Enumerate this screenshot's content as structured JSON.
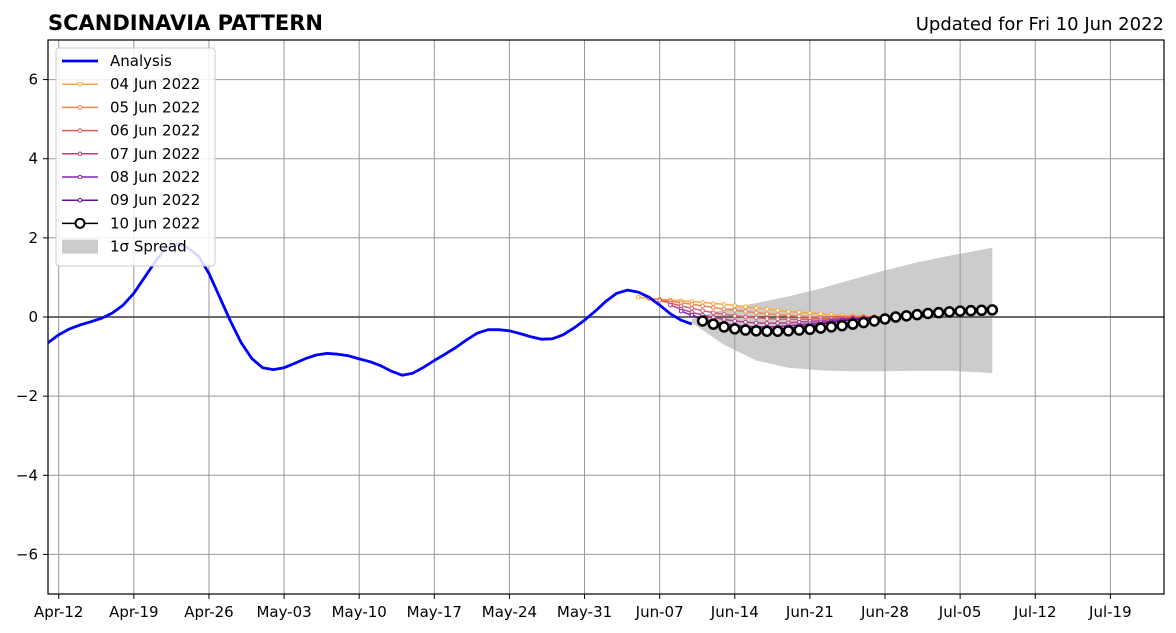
{
  "chart_data": {
    "type": "line",
    "title": "SCANDINAVIA PATTERN",
    "subtitle": "Updated for Fri 10 Jun 2022",
    "xlabel": "",
    "ylabel": "",
    "xlim": [
      "2022-04-11",
      "2022-07-24"
    ],
    "ylim": [
      -7,
      7
    ],
    "grid": true,
    "legend_position": "top-left",
    "x_ticks": [
      "2022-04-12",
      "2022-04-19",
      "2022-04-26",
      "2022-05-03",
      "2022-05-10",
      "2022-05-17",
      "2022-05-24",
      "2022-05-31",
      "2022-06-07",
      "2022-06-14",
      "2022-06-21",
      "2022-06-28",
      "2022-07-05",
      "2022-07-12",
      "2022-07-19"
    ],
    "x_tick_labels": [
      "Apr-12",
      "Apr-19",
      "Apr-26",
      "May-03",
      "May-10",
      "May-17",
      "May-24",
      "May-31",
      "Jun-07",
      "Jun-14",
      "Jun-21",
      "Jun-28",
      "Jul-05",
      "Jul-12",
      "Jul-19"
    ],
    "y_ticks": [
      -6,
      -4,
      -2,
      0,
      2,
      4,
      6
    ],
    "y_tick_labels": [
      "−6",
      "−4",
      "−2",
      "0",
      "2",
      "4",
      "6"
    ],
    "analysis": {
      "name": "Analysis",
      "color": "#0000ff",
      "x": [
        "2022-04-11",
        "2022-04-12",
        "2022-04-13",
        "2022-04-14",
        "2022-04-15",
        "2022-04-16",
        "2022-04-17",
        "2022-04-18",
        "2022-04-19",
        "2022-04-20",
        "2022-04-21",
        "2022-04-22",
        "2022-04-23",
        "2022-04-24",
        "2022-04-25",
        "2022-04-26",
        "2022-04-27",
        "2022-04-28",
        "2022-04-29",
        "2022-04-30",
        "2022-05-01",
        "2022-05-02",
        "2022-05-03",
        "2022-05-04",
        "2022-05-05",
        "2022-05-06",
        "2022-05-07",
        "2022-05-08",
        "2022-05-09",
        "2022-05-10",
        "2022-05-11",
        "2022-05-12",
        "2022-05-13",
        "2022-05-14",
        "2022-05-15",
        "2022-05-16",
        "2022-05-17",
        "2022-05-18",
        "2022-05-19",
        "2022-05-20",
        "2022-05-21",
        "2022-05-22",
        "2022-05-23",
        "2022-05-24",
        "2022-05-25",
        "2022-05-26",
        "2022-05-27",
        "2022-05-28",
        "2022-05-29",
        "2022-05-30",
        "2022-05-31",
        "2022-06-01",
        "2022-06-02",
        "2022-06-03",
        "2022-06-04",
        "2022-06-05",
        "2022-06-06",
        "2022-06-07",
        "2022-06-08",
        "2022-06-09",
        "2022-06-10"
      ],
      "y": [
        -0.65,
        -0.45,
        -0.3,
        -0.2,
        -0.12,
        -0.03,
        0.1,
        0.3,
        0.6,
        1.0,
        1.4,
        1.75,
        1.85,
        1.75,
        1.55,
        1.1,
        0.5,
        -0.1,
        -0.65,
        -1.05,
        -1.28,
        -1.33,
        -1.28,
        -1.17,
        -1.05,
        -0.96,
        -0.92,
        -0.94,
        -0.98,
        -1.06,
        -1.13,
        -1.23,
        -1.37,
        -1.47,
        -1.42,
        -1.27,
        -1.1,
        -0.94,
        -0.77,
        -0.58,
        -0.41,
        -0.32,
        -0.32,
        -0.35,
        -0.42,
        -0.5,
        -0.56,
        -0.55,
        -0.45,
        -0.28,
        -0.08,
        0.15,
        0.4,
        0.6,
        0.68,
        0.63,
        0.5,
        0.3,
        0.08,
        -0.08,
        -0.18
      ]
    },
    "forecasts": [
      {
        "name": "04 Jun 2022",
        "color": "#fcaa3c",
        "start": "2022-06-05",
        "values": [
          0.5,
          0.47,
          0.45,
          0.43,
          0.41,
          0.39,
          0.37,
          0.34,
          0.32,
          0.29,
          0.26,
          0.23,
          0.2,
          0.17,
          0.14,
          0.12,
          0.1,
          0.08,
          0.06,
          0.04,
          0.03,
          0.02,
          0.01
        ]
      },
      {
        "name": "05 Jun 2022",
        "color": "#f0844b",
        "start": "2022-06-06",
        "values": [
          0.48,
          0.44,
          0.4,
          0.36,
          0.32,
          0.28,
          0.24,
          0.2,
          0.17,
          0.14,
          0.11,
          0.08,
          0.06,
          0.04,
          0.02,
          0.01,
          0.0,
          -0.01,
          -0.01,
          0.0,
          0.0,
          0.01
        ]
      },
      {
        "name": "06 Jun 2022",
        "color": "#dd5e66",
        "start": "2022-06-07",
        "values": [
          0.42,
          0.35,
          0.28,
          0.22,
          0.16,
          0.11,
          0.07,
          0.03,
          0.0,
          -0.02,
          -0.04,
          -0.05,
          -0.06,
          -0.06,
          -0.05,
          -0.04,
          -0.03,
          -0.02,
          -0.01,
          0.0,
          0.0
        ]
      },
      {
        "name": "07 Jun 2022",
        "color": "#b83d87",
        "start": "2022-06-08",
        "values": [
          0.3,
          0.2,
          0.12,
          0.05,
          -0.01,
          -0.06,
          -0.1,
          -0.13,
          -0.15,
          -0.16,
          -0.16,
          -0.15,
          -0.13,
          -0.11,
          -0.09,
          -0.07,
          -0.05,
          -0.03,
          -0.02,
          -0.01
        ]
      },
      {
        "name": "08 Jun 2022",
        "color": "#8c1eab",
        "start": "2022-06-09",
        "values": [
          0.15,
          0.04,
          -0.05,
          -0.12,
          -0.17,
          -0.21,
          -0.24,
          -0.25,
          -0.25,
          -0.24,
          -0.22,
          -0.2,
          -0.17,
          -0.14,
          -0.11,
          -0.08,
          -0.05,
          -0.03,
          -0.01
        ]
      },
      {
        "name": "09 Jun 2022",
        "color": "#5f0f91",
        "start": "2022-06-10",
        "values": [
          0.05,
          -0.06,
          -0.15,
          -0.22,
          -0.27,
          -0.3,
          -0.31,
          -0.31,
          -0.3,
          -0.28,
          -0.25,
          -0.22,
          -0.18,
          -0.14,
          -0.1,
          -0.07,
          -0.04,
          -0.02
        ]
      },
      {
        "name": "10 Jun 2022",
        "color": "#000000",
        "marker": "hollow-circle",
        "start": "2022-06-11",
        "values": [
          -0.1,
          -0.18,
          -0.25,
          -0.3,
          -0.33,
          -0.35,
          -0.36,
          -0.36,
          -0.35,
          -0.33,
          -0.31,
          -0.28,
          -0.25,
          -0.22,
          -0.18,
          -0.14,
          -0.1,
          -0.05,
          0.0,
          0.03,
          0.06,
          0.09,
          0.11,
          0.13,
          0.15,
          0.16,
          0.17,
          0.18
        ]
      }
    ],
    "spread": {
      "name": "1σ Spread",
      "color": "#cccccc",
      "x": [
        "2022-06-10",
        "2022-06-13",
        "2022-06-16",
        "2022-06-19",
        "2022-06-22",
        "2022-06-25",
        "2022-06-28",
        "2022-07-01",
        "2022-07-04",
        "2022-07-07",
        "2022-07-08"
      ],
      "upper": [
        -0.05,
        0.2,
        0.35,
        0.52,
        0.72,
        0.95,
        1.18,
        1.38,
        1.55,
        1.7,
        1.75
      ],
      "lower": [
        -0.15,
        -0.7,
        -1.1,
        -1.28,
        -1.35,
        -1.37,
        -1.37,
        -1.36,
        -1.36,
        -1.4,
        -1.42
      ]
    },
    "reference_line": {
      "y": 0,
      "color": "#555555"
    }
  }
}
